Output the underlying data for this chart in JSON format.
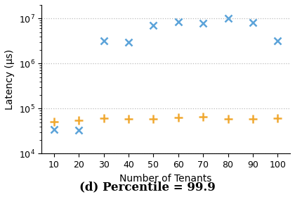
{
  "x_values": [
    10,
    20,
    30,
    40,
    50,
    60,
    70,
    80,
    90,
    100
  ],
  "blue_x_y": [
    35000,
    33000,
    3200000,
    3000000,
    7000000,
    8500000,
    7800000,
    10000000,
    8200000,
    3200000
  ],
  "orange_plus_y": [
    52000,
    55000,
    62000,
    58000,
    60000,
    63000,
    65000,
    60000,
    58000,
    62000
  ],
  "blue_color": "#5ba3d9",
  "orange_color": "#f0a830",
  "xlabel": "Number of Tenants",
  "ylabel": "Latency (μs)",
  "title": "(d) Percentile = 99.9",
  "ylim_bottom": 10000,
  "ylim_top": 20000000,
  "xlim_left": 5,
  "xlim_right": 105,
  "xticks": [
    10,
    20,
    30,
    40,
    50,
    60,
    70,
    80,
    90,
    100
  ],
  "yticks": [
    100000,
    1000000,
    10000000
  ],
  "grid_color": "#bbbbbb",
  "background_color": "#ffffff",
  "title_fontsize": 12,
  "axis_fontsize": 10,
  "tick_fontsize": 9
}
